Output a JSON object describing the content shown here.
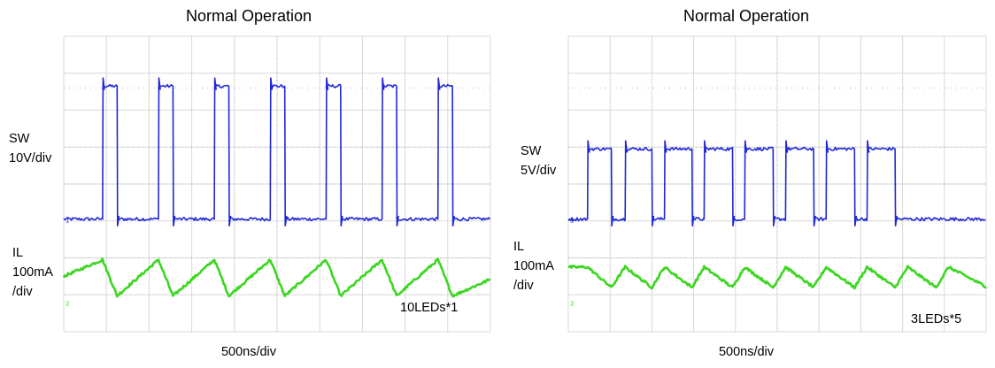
{
  "colors": {
    "sw_trace": "#1f27d6",
    "il_trace": "#3cd621",
    "grid": "#d8d8d8",
    "grid_dots": "#b8b8b8"
  },
  "chart_data": [
    {
      "type": "line",
      "title": "Normal Operation",
      "xlabel": "500ns/div",
      "annotation": "10LEDs*1",
      "grid": true,
      "x_divisions": 10,
      "y_divisions": 8,
      "series": [
        {
          "name": "SW",
          "label_lines": [
            "SW",
            "10V/div"
          ],
          "color": "#1f27d6",
          "edges": [
            0.91,
            1.25,
            2.22,
            2.56,
            3.53,
            3.87,
            4.84,
            5.18,
            6.15,
            6.49,
            7.46,
            7.8,
            8.77,
            9.11
          ],
          "low_div": 3.05,
          "high_div": 6.65
        },
        {
          "name": "IL",
          "label_lines": [
            "IL",
            "100mA",
            "/div"
          ],
          "color": "#3cd621",
          "x_div": [
            0.0,
            0.91,
            1.25,
            2.22,
            2.56,
            3.53,
            3.87,
            4.84,
            5.18,
            6.15,
            6.49,
            7.46,
            7.8,
            8.77,
            9.11,
            10.0
          ],
          "y_div": [
            1.5,
            1.95,
            0.97,
            1.95,
            0.97,
            1.95,
            0.97,
            1.95,
            0.97,
            1.95,
            0.97,
            1.95,
            0.97,
            1.95,
            0.97,
            1.42
          ]
        }
      ]
    },
    {
      "type": "line",
      "title": "Normal Operation",
      "xlabel": "500ns/div",
      "annotation": "3LEDs*5",
      "grid": true,
      "x_divisions": 10,
      "y_divisions": 8,
      "series": [
        {
          "name": "SW",
          "label_lines": [
            "SW",
            "5V/div"
          ],
          "color": "#1f27d6",
          "edges": [
            0.46,
            1.03,
            1.36,
            2.0,
            2.3,
            2.96,
            3.25,
            3.93,
            4.22,
            4.9,
            5.2,
            5.87,
            6.17,
            6.85,
            7.15,
            7.82
          ],
          "low_div": 3.05,
          "high_div": 4.95
        },
        {
          "name": "IL",
          "label_lines": [
            "IL",
            "100mA",
            "/div"
          ],
          "color": "#3cd621",
          "x_div": [
            0.0,
            0.46,
            1.03,
            1.36,
            2.0,
            2.3,
            2.96,
            3.25,
            3.93,
            4.22,
            4.9,
            5.2,
            5.87,
            6.17,
            6.85,
            7.15,
            7.82,
            8.12,
            8.8,
            9.1,
            10.0
          ],
          "y_div": [
            1.75,
            1.75,
            1.2,
            1.75,
            1.2,
            1.75,
            1.2,
            1.75,
            1.2,
            1.75,
            1.2,
            1.75,
            1.2,
            1.75,
            1.2,
            1.75,
            1.2,
            1.75,
            1.2,
            1.75,
            1.22
          ]
        }
      ]
    }
  ]
}
